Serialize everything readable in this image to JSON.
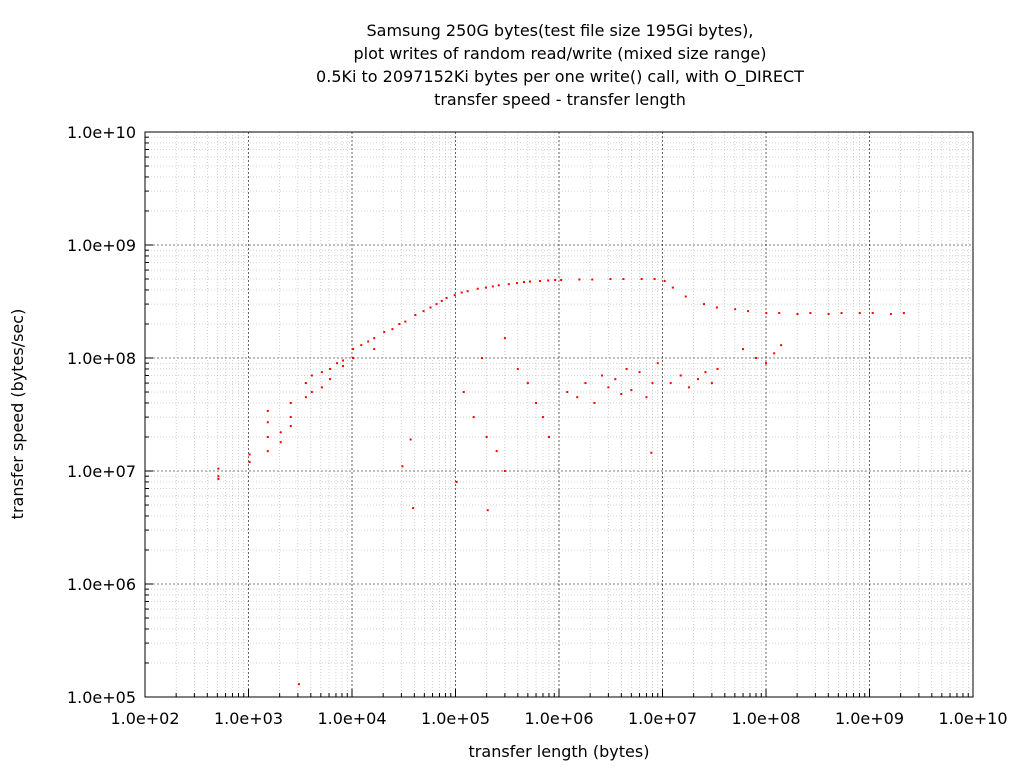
{
  "chart_data": {
    "type": "scatter",
    "title_lines": [
      "Samsung 250G bytes(test file size 195Gi bytes),",
      "plot writes of random read/write (mixed size range)",
      "0.5Ki to 2097152Ki bytes per one write() call, with O_DIRECT",
      "transfer speed - transfer length"
    ],
    "xlabel": "transfer length (bytes)",
    "ylabel": "transfer speed (bytes/sec)",
    "x_scale": "log",
    "y_scale": "log",
    "xlim": [
      100,
      10000000000
    ],
    "ylim": [
      100000,
      10000000000
    ],
    "x_ticks": [
      {
        "value": 100,
        "label": "1.0e+02"
      },
      {
        "value": 1000,
        "label": "1.0e+03"
      },
      {
        "value": 10000,
        "label": "1.0e+04"
      },
      {
        "value": 100000,
        "label": "1.0e+05"
      },
      {
        "value": 1000000,
        "label": "1.0e+06"
      },
      {
        "value": 10000000,
        "label": "1.0e+07"
      },
      {
        "value": 100000000,
        "label": "1.0e+08"
      },
      {
        "value": 1000000000,
        "label": "1.0e+09"
      },
      {
        "value": 10000000000,
        "label": "1.0e+10"
      }
    ],
    "y_ticks": [
      {
        "value": 100000,
        "label": "1.0e+05"
      },
      {
        "value": 1000000,
        "label": "1.0e+06"
      },
      {
        "value": 10000000,
        "label": "1.0e+07"
      },
      {
        "value": 100000000,
        "label": "1.0e+08"
      },
      {
        "value": 1000000000,
        "label": "1.0e+09"
      },
      {
        "value": 10000000000,
        "label": "1.0e+10"
      }
    ],
    "grid": true,
    "series": [
      {
        "color": "#ff0000",
        "points": [
          [
            512,
            9000000
          ],
          [
            512,
            10500000
          ],
          [
            512,
            8500000
          ],
          [
            1024,
            14000000
          ],
          [
            1024,
            12000000
          ],
          [
            1536,
            15000000
          ],
          [
            1536,
            20000000
          ],
          [
            1536,
            27000000
          ],
          [
            1536,
            34000000
          ],
          [
            2048,
            22000000
          ],
          [
            2048,
            18000000
          ],
          [
            2560,
            30000000
          ],
          [
            2560,
            40000000
          ],
          [
            2560,
            25000000
          ],
          [
            3072,
            130000
          ],
          [
            3584,
            45000000
          ],
          [
            3584,
            60000000
          ],
          [
            4096,
            50000000
          ],
          [
            4096,
            70000000
          ],
          [
            5120,
            55000000
          ],
          [
            5120,
            75000000
          ],
          [
            6144,
            80000000
          ],
          [
            6144,
            65000000
          ],
          [
            7168,
            90000000
          ],
          [
            8192,
            95000000
          ],
          [
            8192,
            85000000
          ],
          [
            10240,
            100000000
          ],
          [
            10240,
            120000000
          ],
          [
            12288,
            130000000
          ],
          [
            14336,
            140000000
          ],
          [
            16384,
            150000000
          ],
          [
            16384,
            120000000
          ],
          [
            20480,
            170000000
          ],
          [
            24576,
            180000000
          ],
          [
            28672,
            200000000
          ],
          [
            30720,
            11000000
          ],
          [
            32768,
            210000000
          ],
          [
            36864,
            19000000
          ],
          [
            38912,
            4700000
          ],
          [
            40960,
            240000000
          ],
          [
            49152,
            260000000
          ],
          [
            57344,
            280000000
          ],
          [
            65536,
            300000000
          ],
          [
            73728,
            320000000
          ],
          [
            81920,
            340000000
          ],
          [
            98304,
            360000000
          ],
          [
            102400,
            8000000
          ],
          [
            114688,
            380000000
          ],
          [
            131072,
            390000000
          ],
          [
            163840,
            410000000
          ],
          [
            196608,
            420000000
          ],
          [
            204800,
            4500000
          ],
          [
            229376,
            430000000
          ],
          [
            262144,
            440000000
          ],
          [
            327680,
            450000000
          ],
          [
            393216,
            460000000
          ],
          [
            458752,
            470000000
          ],
          [
            524288,
            475000000
          ],
          [
            655360,
            480000000
          ],
          [
            786432,
            485000000
          ],
          [
            917504,
            490000000
          ],
          [
            1048576,
            490000000
          ],
          [
            1572864,
            495000000
          ],
          [
            2097152,
            495000000
          ],
          [
            3145728,
            500000000
          ],
          [
            4194304,
            500000000
          ],
          [
            6291456,
            500000000
          ],
          [
            8388608,
            500000000
          ],
          [
            10485760,
            480000000
          ],
          [
            12582912,
            420000000
          ],
          [
            16777216,
            350000000
          ],
          [
            25165824,
            300000000
          ],
          [
            33554432,
            280000000
          ],
          [
            50331648,
            270000000
          ],
          [
            67108864,
            260000000
          ],
          [
            100663296,
            250000000
          ],
          [
            134217728,
            250000000
          ],
          [
            201326592,
            245000000
          ],
          [
            268435456,
            250000000
          ],
          [
            402653184,
            245000000
          ],
          [
            536870912,
            250000000
          ],
          [
            805306368,
            250000000
          ],
          [
            1073741824,
            250000000
          ],
          [
            1610612736,
            245000000
          ],
          [
            2147483648,
            250000000
          ],
          [
            1200000,
            50000000
          ],
          [
            1500000,
            45000000
          ],
          [
            1800000,
            60000000
          ],
          [
            2200000,
            40000000
          ],
          [
            2600000,
            70000000
          ],
          [
            3000000,
            55000000
          ],
          [
            3500000,
            65000000
          ],
          [
            4000000,
            48000000
          ],
          [
            4500000,
            80000000
          ],
          [
            5000000,
            52000000
          ],
          [
            6000000,
            75000000
          ],
          [
            7000000,
            45000000
          ],
          [
            8000000,
            60000000
          ],
          [
            9000000,
            90000000
          ],
          [
            7800000,
            14500000
          ],
          [
            12000000,
            60000000
          ],
          [
            15000000,
            70000000
          ],
          [
            18000000,
            55000000
          ],
          [
            22000000,
            65000000
          ],
          [
            26000000,
            75000000
          ],
          [
            30000000,
            60000000
          ],
          [
            34000000,
            80000000
          ],
          [
            60000000,
            120000000
          ],
          [
            80000000,
            100000000
          ],
          [
            100000000,
            90000000
          ],
          [
            120000000,
            110000000
          ],
          [
            140000000,
            130000000
          ],
          [
            300000,
            150000000
          ],
          [
            400000,
            80000000
          ],
          [
            500000,
            60000000
          ],
          [
            600000,
            40000000
          ],
          [
            700000,
            30000000
          ],
          [
            800000,
            20000000
          ],
          [
            150000,
            30000000
          ],
          [
            200000,
            20000000
          ],
          [
            250000,
            15000000
          ],
          [
            300000,
            10000000
          ],
          [
            120000,
            50000000
          ],
          [
            180000,
            100000000
          ]
        ]
      }
    ]
  }
}
